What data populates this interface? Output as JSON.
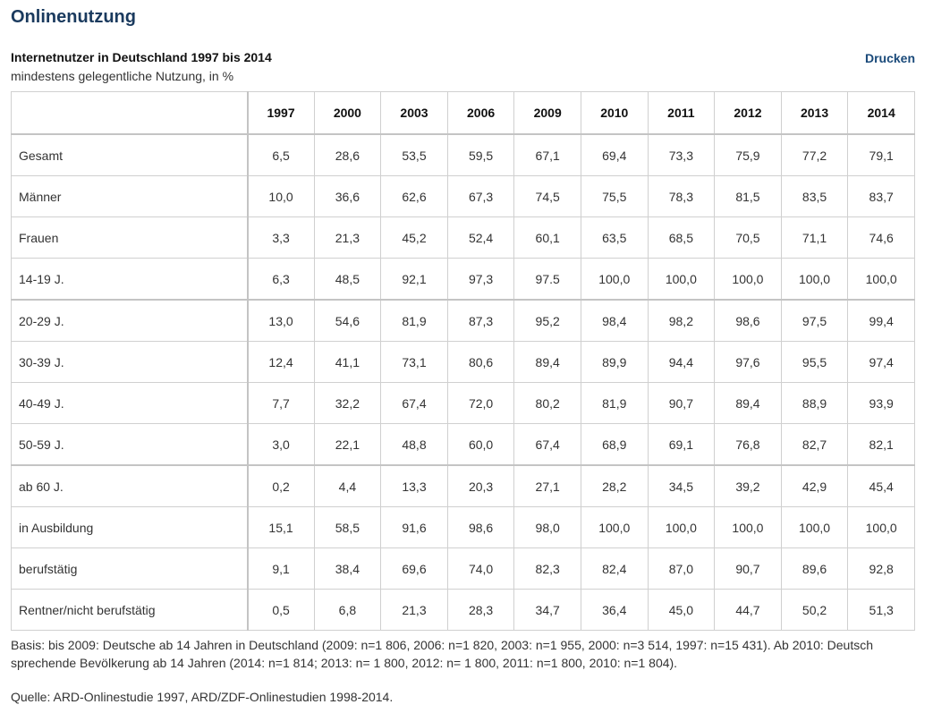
{
  "page": {
    "title": "Onlinenutzung",
    "print_label": "Drucken"
  },
  "table": {
    "title": "Internetnutzer in Deutschland 1997 bis 2014",
    "subtitle": "mindestens gelegentliche Nutzung, in %",
    "header_corner": "",
    "years": [
      "1997",
      "2000",
      "2003",
      "2006",
      "2009",
      "2010",
      "2011",
      "2012",
      "2013",
      "2014"
    ],
    "rows": [
      {
        "label": "Gesamt",
        "values": [
          "6,5",
          "28,6",
          "53,5",
          "59,5",
          "67,1",
          "69,4",
          "73,3",
          "75,9",
          "77,2",
          "79,1"
        ]
      },
      {
        "label": "Männer",
        "values": [
          "10,0",
          "36,6",
          "62,6",
          "67,3",
          "74,5",
          "75,5",
          "78,3",
          "81,5",
          "83,5",
          "83,7"
        ]
      },
      {
        "label": "Frauen",
        "values": [
          "3,3",
          "21,3",
          "45,2",
          "52,4",
          "60,1",
          "63,5",
          "68,5",
          "70,5",
          "71,1",
          "74,6"
        ]
      },
      {
        "label": "14-19 J.",
        "values": [
          "6,3",
          "48,5",
          "92,1",
          "97,3",
          "97.5",
          "100,0",
          "100,0",
          "100,0",
          "100,0",
          "100,0"
        ]
      },
      {
        "label": "20-29 J.",
        "values": [
          "13,0",
          "54,6",
          "81,9",
          "87,3",
          "95,2",
          "98,4",
          "98,2",
          "98,6",
          "97,5",
          "99,4"
        ]
      },
      {
        "label": "30-39 J.",
        "values": [
          "12,4",
          "41,1",
          "73,1",
          "80,6",
          "89,4",
          "89,9",
          "94,4",
          "97,6",
          "95,5",
          "97,4"
        ]
      },
      {
        "label": "40-49 J.",
        "values": [
          "7,7",
          "32,2",
          "67,4",
          "72,0",
          "80,2",
          "81,9",
          "90,7",
          "89,4",
          "88,9",
          "93,9"
        ]
      },
      {
        "label": "50-59 J.",
        "values": [
          "3,0",
          "22,1",
          "48,8",
          "60,0",
          "67,4",
          "68,9",
          "69,1",
          "76,8",
          "82,7",
          "82,1"
        ]
      },
      {
        "label": "ab 60 J.",
        "values": [
          "0,2",
          "4,4",
          "13,3",
          "20,3",
          "27,1",
          "28,2",
          "34,5",
          "39,2",
          "42,9",
          "45,4"
        ]
      },
      {
        "label": "in Ausbildung",
        "values": [
          "15,1",
          "58,5",
          "91,6",
          "98,6",
          "98,0",
          "100,0",
          "100,0",
          "100,0",
          "100,0",
          "100,0"
        ]
      },
      {
        "label": "berufstätig",
        "values": [
          "9,1",
          "38,4",
          "69,6",
          "74,0",
          "82,3",
          "82,4",
          "87,0",
          "90,7",
          "89,6",
          "92,8"
        ]
      },
      {
        "label": "Rentner/nicht berufstätig",
        "values": [
          "0,5",
          "6,8",
          "21,3",
          "28,3",
          "34,7",
          "36,4",
          "45,0",
          "44,7",
          "50,2",
          "51,3"
        ]
      }
    ]
  },
  "footnote": "Basis: bis 2009: Deutsche ab 14 Jahren in Deutschland (2009: n=1 806, 2006: n=1 820, 2003: n=1 955, 2000: n=3 514, 1997: n=15 431). Ab 2010: Deutsch sprechende Bevölkerung ab 14 Jahren (2014: n=1 814; 2013: n= 1 800, 2012: n= 1 800, 2011: n=1 800, 2010: n=1 804).",
  "source": "Quelle: ARD-Onlinestudie 1997, ARD/ZDF-Onlinestudien 1998-2014."
}
